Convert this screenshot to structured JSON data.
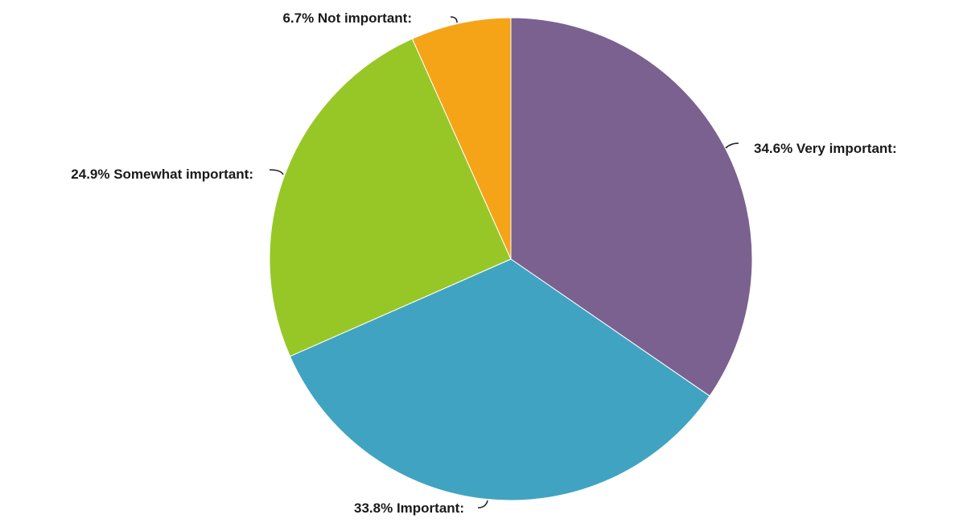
{
  "chart_data": {
    "type": "pie",
    "start_angle_deg": 0,
    "direction": "clockwise",
    "slices": [
      {
        "label": "Very important:",
        "value": 34.6,
        "display": "34.6%",
        "color": "#7b6190"
      },
      {
        "label": "Important:",
        "value": 33.8,
        "display": "33.8%",
        "color": "#41a3c2"
      },
      {
        "label": "Somewhat important:",
        "value": 24.9,
        "display": "24.9%",
        "color": "#97c727"
      },
      {
        "label": "Not important:",
        "value": 6.7,
        "display": "6.7%",
        "color": "#f5a418"
      }
    ]
  }
}
